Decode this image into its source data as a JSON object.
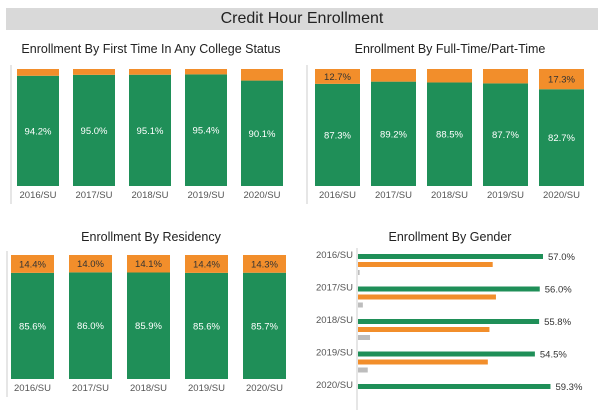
{
  "dashboard": {
    "title": "Credit Hour Enrollment"
  },
  "colors": {
    "green": "#1f8f58",
    "orange": "#f28e2b",
    "gray": "#bdbdbd",
    "axis": "#555555"
  },
  "chart_data": [
    {
      "id": "first_time",
      "type": "bar",
      "stacked": true,
      "title": "Enrollment By First Time In Any College Status",
      "categories": [
        "2016/SU",
        "2017/SU",
        "2018/SU",
        "2019/SU",
        "2020/SU"
      ],
      "series": [
        {
          "color": "green",
          "values": [
            94.2,
            95.0,
            95.1,
            95.4,
            90.1
          ],
          "labels": [
            "94.2%",
            "95.0%",
            "95.1%",
            "95.4%",
            "90.1%"
          ]
        },
        {
          "color": "orange",
          "values": [
            5.8,
            5.0,
            4.9,
            4.6,
            9.9
          ],
          "labels": [
            "",
            "",
            "",
            "",
            ""
          ]
        }
      ],
      "ylim": [
        0,
        100
      ]
    },
    {
      "id": "full_part",
      "type": "bar",
      "stacked": true,
      "title": "Enrollment By Full-Time/Part-Time",
      "categories": [
        "2016/SU",
        "2017/SU",
        "2018/SU",
        "2019/SU",
        "2020/SU"
      ],
      "series": [
        {
          "color": "green",
          "values": [
            87.3,
            89.2,
            88.5,
            87.7,
            82.7
          ],
          "labels": [
            "87.3%",
            "89.2%",
            "88.5%",
            "87.7%",
            "82.7%"
          ]
        },
        {
          "color": "orange",
          "values": [
            12.7,
            10.8,
            11.5,
            12.3,
            17.3
          ],
          "labels": [
            "12.7%",
            "",
            "",
            "",
            "17.3%"
          ]
        }
      ],
      "ylim": [
        0,
        100
      ]
    },
    {
      "id": "residency",
      "type": "bar",
      "stacked": true,
      "title": "Enrollment By Residency",
      "categories": [
        "2016/SU",
        "2017/SU",
        "2018/SU",
        "2019/SU",
        "2020/SU"
      ],
      "series": [
        {
          "color": "green",
          "values": [
            85.6,
            86.0,
            85.9,
            85.6,
            85.7
          ],
          "labels": [
            "85.6%",
            "86.0%",
            "85.9%",
            "85.6%",
            "85.7%"
          ]
        },
        {
          "color": "orange",
          "values": [
            14.4,
            14.0,
            14.1,
            14.4,
            14.3
          ],
          "labels": [
            "14.4%",
            "14.0%",
            "14.1%",
            "14.4%",
            "14.3%"
          ]
        }
      ],
      "ylim": [
        0,
        100
      ]
    },
    {
      "id": "gender",
      "type": "bar",
      "orientation": "horizontal",
      "title": "Enrollment By Gender",
      "categories": [
        "2016/SU",
        "2017/SU",
        "2018/SU",
        "2019/SU",
        "2020/SU"
      ],
      "series": [
        {
          "color": "green",
          "values": [
            57.0,
            56.0,
            55.8,
            54.5,
            59.3
          ],
          "labels": [
            "57.0%",
            "56.0%",
            "55.8%",
            "54.5%",
            "59.3%"
          ]
        },
        {
          "color": "orange",
          "values": [
            41.5,
            42.5,
            40.5,
            40.0,
            null
          ],
          "labels": [
            "",
            "",
            "",
            "",
            ""
          ]
        },
        {
          "color": "gray",
          "values": [
            0.5,
            1.5,
            3.7,
            3.0,
            null
          ],
          "labels": [
            "",
            "",
            "",
            "",
            ""
          ]
        }
      ],
      "xlim": [
        0,
        100
      ]
    }
  ]
}
